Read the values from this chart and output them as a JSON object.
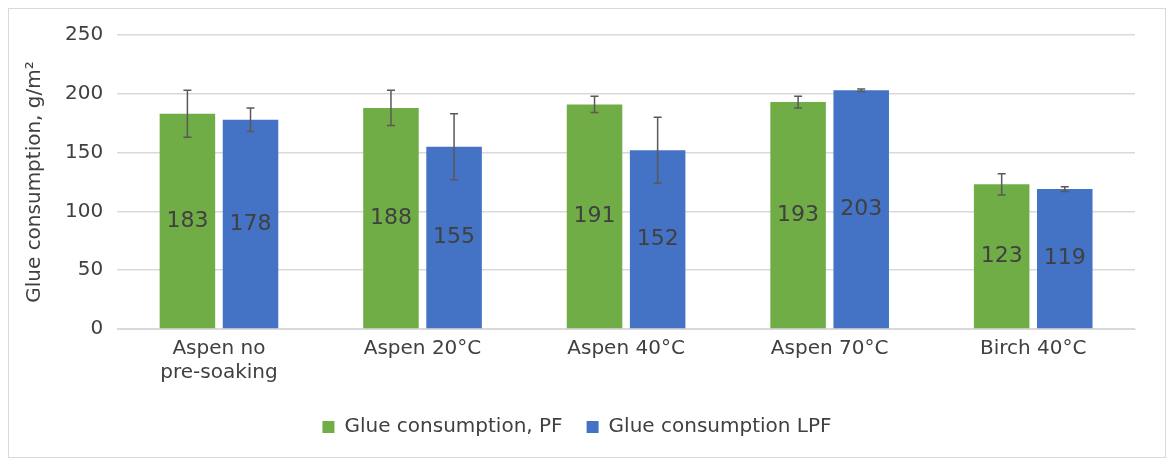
{
  "chart_data": {
    "type": "bar",
    "ylabel": "Glue consumption, g/m²",
    "categories": [
      "Aspen no pre-soaking",
      "Aspen 20°C",
      "Aspen 40°C",
      "Aspen 70°C",
      "Birch 40°C"
    ],
    "series": [
      {
        "name": "Glue consumption, PF",
        "color": "#70ad47",
        "values": [
          183,
          188,
          191,
          193,
          123
        ],
        "errors": [
          20,
          15,
          7,
          5,
          9
        ]
      },
      {
        "name": "Glue consumption LPF",
        "color": "#4472c4",
        "values": [
          178,
          155,
          152,
          203,
          119
        ],
        "errors": [
          10,
          28,
          28,
          1,
          2
        ]
      }
    ],
    "ylim": [
      0,
      250
    ],
    "yticks": [
      0,
      50,
      100,
      150,
      200,
      250
    ],
    "grid": "y",
    "legend": "bottom",
    "data_labels": true
  }
}
